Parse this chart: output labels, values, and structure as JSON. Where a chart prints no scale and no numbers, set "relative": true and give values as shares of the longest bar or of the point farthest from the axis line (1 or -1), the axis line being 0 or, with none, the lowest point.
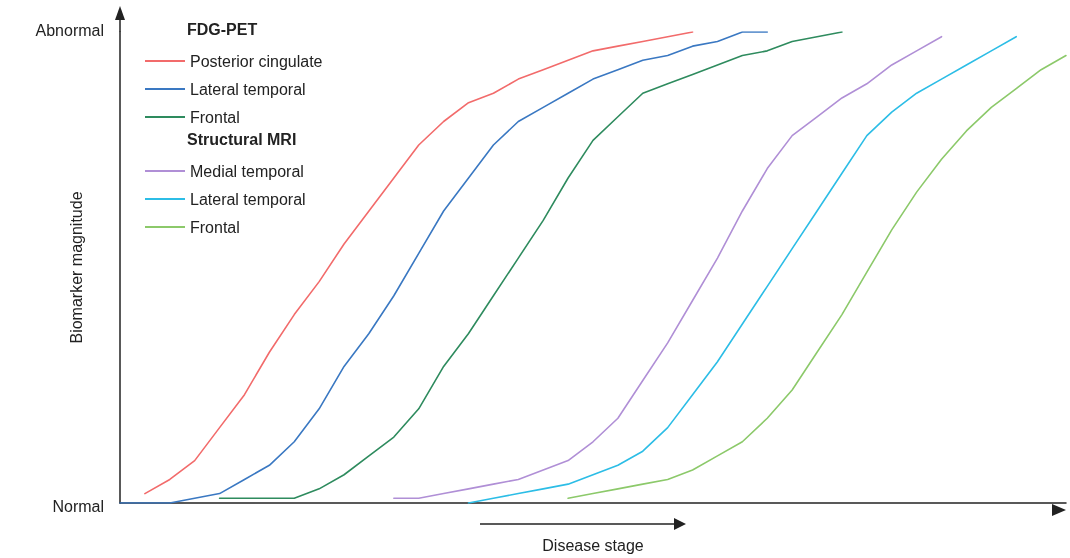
{
  "chart_data": {
    "type": "line",
    "xlabel": "Disease stage",
    "ylabel": "Biomarker magnitude",
    "relative": true,
    "categories": [
      null,
      null,
      null,
      null,
      null,
      null,
      null,
      null,
      null,
      null,
      null,
      null,
      null,
      null,
      null,
      null,
      null,
      null,
      null,
      null,
      null,
      null,
      null,
      null,
      null,
      null,
      null,
      null,
      null,
      null,
      null,
      null,
      null,
      null,
      null,
      null,
      null,
      null,
      null
    ],
    "marker": "none",
    "legend": "top left",
    "annotations": [
      "FDG-PET",
      "Structural MRI",
      "Normal",
      "Abnormal"
    ],
    "series": [
      {
        "name": "Posterior cingulate",
        "color": "#f26b6b",
        "values": [
          null,
          0.02,
          0.05,
          0.09,
          0.16,
          0.23,
          0.32,
          0.4,
          0.47,
          0.55,
          0.62,
          0.69,
          0.76,
          0.81,
          0.85,
          0.87,
          0.9,
          0.92,
          0.94,
          0.96,
          0.97,
          0.98,
          0.99,
          1,
          null,
          null,
          null,
          null,
          null,
          null,
          null,
          null,
          null,
          null,
          null,
          null,
          null,
          null,
          null
        ]
      },
      {
        "name": "Lateral temporal",
        "color": "#3a78c2",
        "values": [
          0,
          0,
          0,
          0.01,
          0.02,
          0.05,
          0.08,
          0.13,
          0.2,
          0.29,
          0.36,
          0.44,
          0.53,
          0.62,
          0.69,
          0.76,
          0.81,
          0.84,
          0.87,
          0.9,
          0.92,
          0.94,
          0.95,
          0.97,
          0.98,
          1,
          1,
          null,
          null,
          null,
          null,
          null,
          null,
          null,
          null,
          null,
          null,
          null,
          null
        ]
      },
      {
        "name": "Frontal",
        "color": "#2e8b5e",
        "values": [
          null,
          null,
          null,
          null,
          0.01,
          0.01,
          0.01,
          0.01,
          0.03,
          0.06,
          0.1,
          0.14,
          0.2,
          0.29,
          0.36,
          0.44,
          0.52,
          0.6,
          0.69,
          0.77,
          0.82,
          0.87,
          0.89,
          0.91,
          0.93,
          0.95,
          0.96,
          0.98,
          0.99,
          1,
          null,
          null,
          null,
          null,
          null,
          null,
          null,
          null,
          null
        ]
      },
      {
        "name": "Medial temporal",
        "color": "#b08fd6",
        "values": [
          null,
          null,
          null,
          null,
          null,
          null,
          null,
          null,
          null,
          null,
          null,
          0.01,
          0.01,
          0.02,
          0.03,
          0.04,
          0.05,
          0.07,
          0.09,
          0.13,
          0.18,
          0.26,
          0.34,
          0.43,
          0.52,
          0.62,
          0.71,
          0.78,
          0.82,
          0.86,
          0.89,
          0.93,
          0.96,
          0.99,
          null,
          null,
          null,
          null,
          null
        ]
      },
      {
        "name": "Lateral temporal",
        "color": "#2cbde6",
        "values": [
          null,
          null,
          null,
          null,
          null,
          null,
          null,
          null,
          null,
          null,
          null,
          null,
          null,
          null,
          0,
          0.01,
          0.02,
          0.03,
          0.04,
          0.06,
          0.08,
          0.11,
          0.16,
          0.23,
          0.3,
          0.38,
          0.46,
          0.54,
          0.62,
          0.7,
          0.78,
          0.83,
          0.87,
          0.9,
          0.93,
          0.96,
          0.99,
          null,
          null
        ]
      },
      {
        "name": "Frontal",
        "color": "#8cc96a",
        "values": [
          null,
          null,
          null,
          null,
          null,
          null,
          null,
          null,
          null,
          null,
          null,
          null,
          null,
          null,
          null,
          null,
          null,
          null,
          0.01,
          0.02,
          0.03,
          0.04,
          0.05,
          0.07,
          0.1,
          0.13,
          0.18,
          0.24,
          0.32,
          0.4,
          0.49,
          0.58,
          0.66,
          0.73,
          0.79,
          0.84,
          0.88,
          0.92,
          0.95
        ]
      }
    ]
  }
}
